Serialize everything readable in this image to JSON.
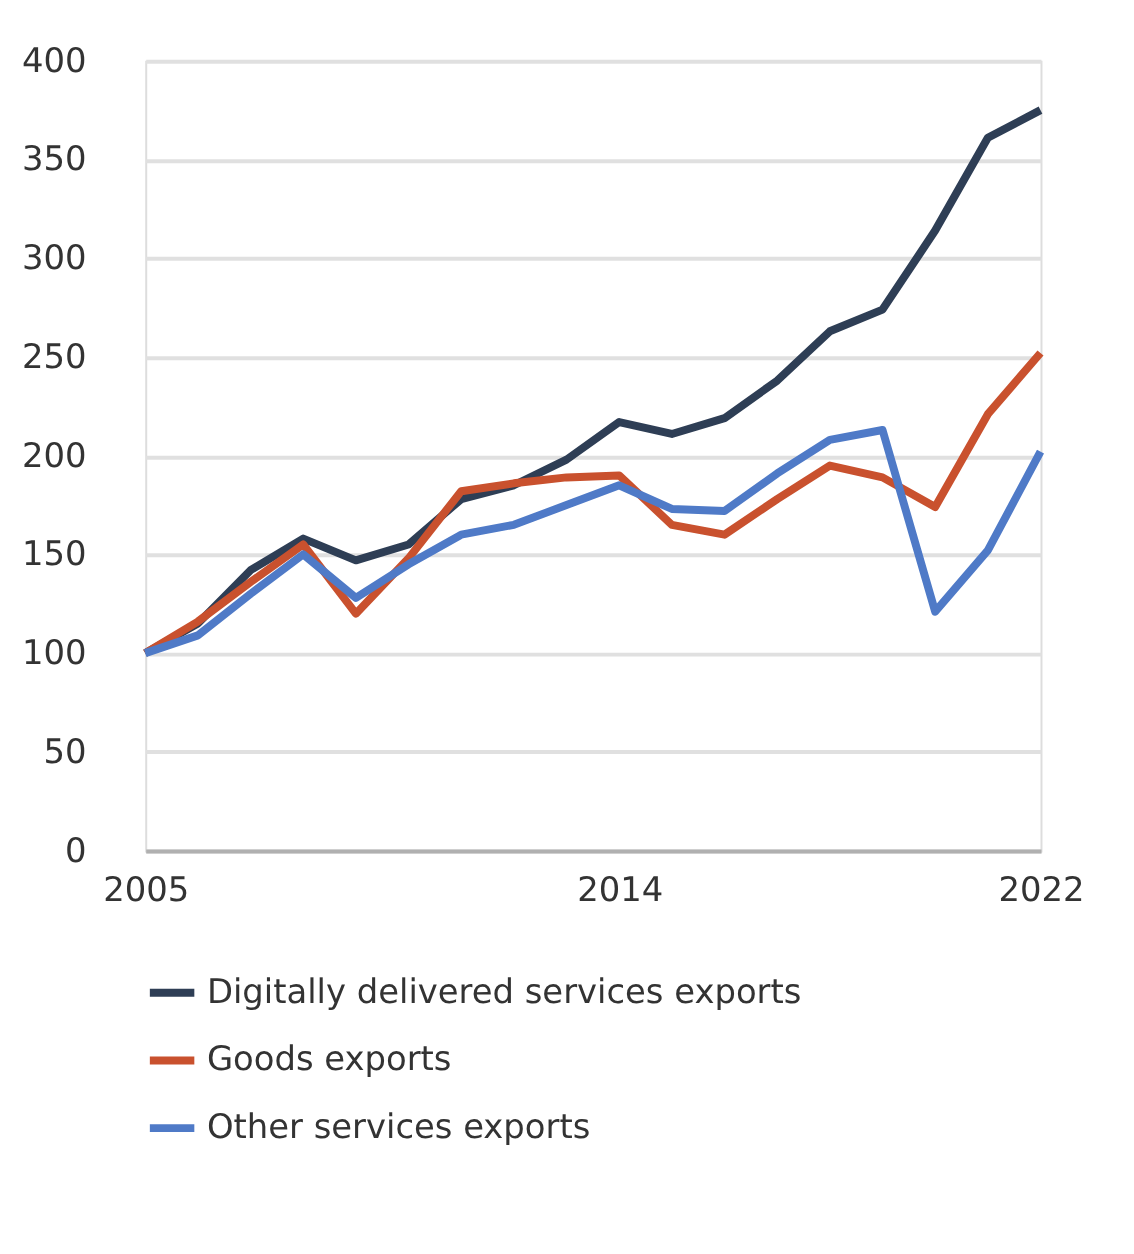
{
  "chart_data": {
    "type": "line",
    "x": [
      2005,
      2006,
      2007,
      2008,
      2009,
      2010,
      2011,
      2012,
      2013,
      2014,
      2015,
      2016,
      2017,
      2018,
      2019,
      2020,
      2021,
      2022
    ],
    "xlim": [
      2005,
      2022
    ],
    "xticks": [
      2005,
      2014,
      2022
    ],
    "ylim": [
      0,
      400
    ],
    "yticks": [
      0,
      50,
      100,
      150,
      200,
      250,
      300,
      350,
      400
    ],
    "grid": "y",
    "legend": "bottom",
    "marker": "none",
    "line_style": "solid",
    "series": [
      {
        "name": "Digitally delivered services exports",
        "color": "#2e3e55",
        "values": [
          100,
          115,
          142,
          158,
          147,
          155,
          178,
          185,
          198,
          217,
          211,
          219,
          238,
          263,
          274,
          314,
          361,
          375
        ]
      },
      {
        "name": "Goods exports",
        "color": "#c9512e",
        "values": [
          100,
          116,
          136,
          155,
          120,
          148,
          182,
          186,
          189,
          190,
          165,
          160,
          178,
          195,
          189,
          174,
          221,
          252
        ]
      },
      {
        "name": "Other services exports",
        "color": "#4f7ac7",
        "values": [
          100,
          109,
          130,
          150,
          128,
          145,
          160,
          165,
          175,
          185,
          173,
          172,
          191,
          208,
          213,
          121,
          152,
          202
        ]
      }
    ]
  }
}
